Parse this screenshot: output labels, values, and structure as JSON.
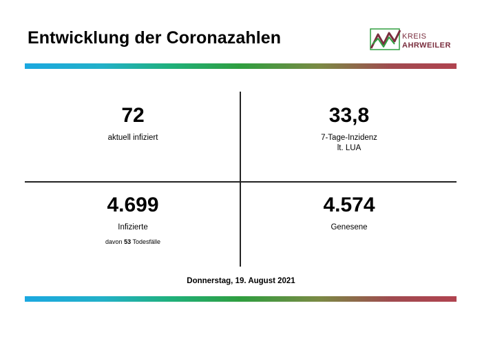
{
  "title": "Entwicklung der Coronazahlen",
  "logo": {
    "line1": "KREIS",
    "line2": "AHRWEILER",
    "colors": [
      "#2f9e3f",
      "#7a2e3e"
    ]
  },
  "stats": {
    "infected": {
      "value": "72",
      "label": "aktuell infiziert"
    },
    "incidence": {
      "value": "33,8",
      "label1": "7-Tage-Inzidenz",
      "label2": "lt. LUA"
    },
    "total": {
      "value": "4.699",
      "label": "Infizierte",
      "sub_prefix": "davon",
      "sub_value": "53",
      "sub_suffix": "Todesfälle"
    },
    "recovered": {
      "value": "4.574",
      "label": "Genesene"
    }
  },
  "date": "Donnerstag, 19. August 2021",
  "colors": {
    "gradient": [
      "#1ba8e0",
      "#1fb07a",
      "#2f9e3f",
      "#a04a4f",
      "#b0434f"
    ]
  }
}
